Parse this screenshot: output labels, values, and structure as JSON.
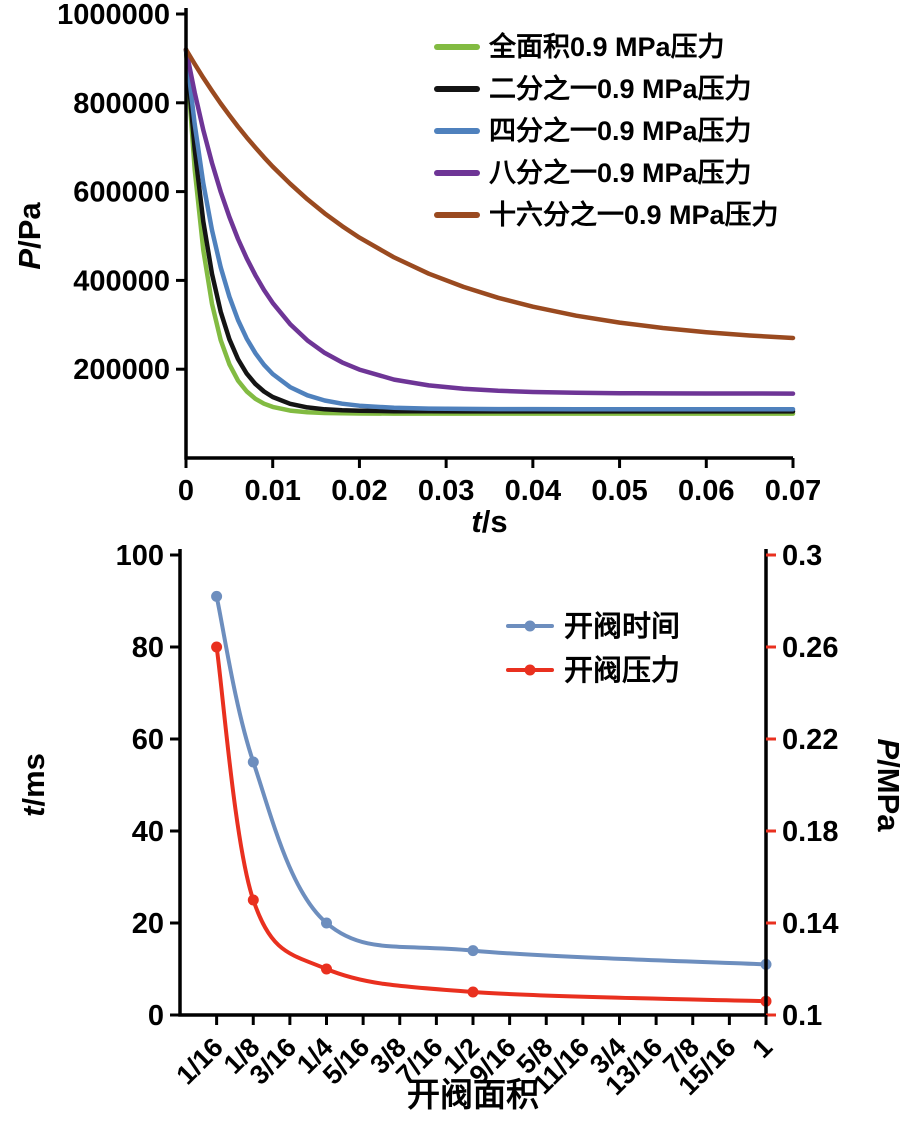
{
  "page": {
    "background": "#ffffff"
  },
  "chart_data": [
    {
      "id": "pressure-decay",
      "type": "line",
      "title": "",
      "xlabel_var": "t",
      "xlabel_unit": "/s",
      "ylabel_var": "P",
      "ylabel_unit": "/Pa",
      "xlim": [
        0,
        0.07
      ],
      "ylim": [
        0,
        1000000
      ],
      "xticks": [
        0,
        0.01,
        0.02,
        0.03,
        0.04,
        0.05,
        0.06,
        0.07
      ],
      "xtick_labels": [
        "0",
        "0.01",
        "0.02",
        "0.03",
        "0.04",
        "0.05",
        "0.06",
        "0.07"
      ],
      "yticks": [
        200000,
        400000,
        600000,
        800000,
        1000000
      ],
      "ytick_labels": [
        "200000",
        "400000",
        "600000",
        "800000",
        "1000000"
      ],
      "grid": false,
      "legend_position": "top-right",
      "t_samples": [
        0,
        0.001,
        0.002,
        0.003,
        0.004,
        0.005,
        0.006,
        0.007,
        0.008,
        0.009,
        0.01,
        0.012,
        0.014,
        0.016,
        0.018,
        0.02,
        0.024,
        0.028,
        0.032,
        0.036,
        0.04,
        0.045,
        0.05,
        0.055,
        0.06,
        0.065,
        0.07
      ],
      "series": [
        {
          "name": "全面积0.9 MPa压力",
          "color": "#82bb42",
          "y": [
            920000,
            649700,
            468400,
            347000,
            265600,
            211000,
            174400,
            149900,
            133400,
            122400,
            115000,
            106700,
            103000,
            101400,
            100600,
            100300,
            100100,
            100000,
            100000,
            100000,
            100000,
            100000,
            100000,
            100000,
            100000,
            100000,
            100000
          ]
        },
        {
          "name": "二分之一0.9 MPa压力",
          "color": "#141414",
          "y": [
            920000,
            695300,
            532600,
            414600,
            329300,
            267400,
            222800,
            190200,
            166700,
            149700,
            137400,
            122000,
            113900,
            109700,
            107400,
            106300,
            105300,
            105100,
            105000,
            105000,
            105000,
            105000,
            105000,
            105000,
            105000,
            105000,
            105000
          ]
        },
        {
          "name": "四分之一0.9 MPa压力",
          "color": "#4f81bd",
          "y": [
            920000,
            751900,
            618800,
            513100,
            429500,
            363200,
            310700,
            269000,
            236000,
            209900,
            189100,
            159700,
            141300,
            129600,
            122300,
            117700,
            113000,
            111200,
            110500,
            110200,
            110100,
            110000,
            110000,
            110000,
            110000,
            110000,
            110000
          ]
        },
        {
          "name": "八分之一0.9 MPa压力",
          "color": "#6e3596",
          "y": [
            920000,
            823300,
            738600,
            664500,
            599600,
            542900,
            493200,
            449700,
            411800,
            378400,
            349300,
            301500,
            264800,
            236800,
            215300,
            199100,
            176600,
            163500,
            155900,
            151400,
            148700,
            146900,
            146000,
            145600,
            145300,
            145200,
            145100
          ]
        },
        {
          "name": "十六分之一0.9 MPa压力",
          "color": "#9a4a20",
          "y": [
            920000,
            887300,
            856200,
            826700,
            798500,
            771800,
            746300,
            722100,
            699100,
            677200,
            656400,
            617700,
            582700,
            551000,
            522400,
            496500,
            451800,
            415200,
            385300,
            360800,
            340700,
            320600,
            305000,
            292800,
            283400,
            276000,
            270200
          ]
        }
      ]
    },
    {
      "id": "valve-open",
      "type": "line",
      "title": "",
      "xlabel": "开阀面积",
      "ylabel_left_var": "t",
      "ylabel_left_unit": "/ms",
      "ylabel_right_var": "P",
      "ylabel_right_unit": "/MPa",
      "categories": [
        "1/16",
        "1/8",
        "3/16",
        "1/4",
        "5/16",
        "3/8",
        "7/16",
        "1/2",
        "9/16",
        "5/8",
        "11/16",
        "3/4",
        "13/16",
        "7/8",
        "15/16",
        "1"
      ],
      "category_values": [
        0.0625,
        0.125,
        0.1875,
        0.25,
        0.3125,
        0.375,
        0.4375,
        0.5,
        0.5625,
        0.625,
        0.6875,
        0.75,
        0.8125,
        0.875,
        0.9375,
        1
      ],
      "ylim_left": [
        0,
        100
      ],
      "yticks_left": [
        0,
        20,
        40,
        60,
        80,
        100
      ],
      "ytick_left_labels": [
        "0",
        "20",
        "40",
        "60",
        "80",
        "100"
      ],
      "ylim_right": [
        0.1,
        0.3
      ],
      "yticks_right": [
        0.1,
        0.14,
        0.18,
        0.22,
        0.26,
        0.3
      ],
      "ytick_right_labels": [
        "0.1",
        "0.14",
        "0.18",
        "0.22",
        "0.26",
        "0.3"
      ],
      "right_axis_color": "#e9301f",
      "grid": false,
      "legend_position": "top-right",
      "series": [
        {
          "name": "开阀时间",
          "axis": "left",
          "color": "#6d8ebe",
          "x": [
            0.0625,
            0.125,
            0.25,
            0.5,
            1
          ],
          "y": [
            91,
            55,
            20,
            14,
            11
          ]
        },
        {
          "name": "开阀压力",
          "axis": "right",
          "color": "#e9301f",
          "x": [
            0.0625,
            0.125,
            0.25,
            0.5,
            1
          ],
          "y": [
            0.26,
            0.15,
            0.12,
            0.11,
            0.106
          ]
        }
      ]
    }
  ]
}
